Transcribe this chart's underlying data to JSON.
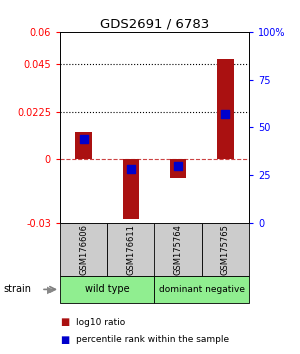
{
  "title": "GDS2691 / 6783",
  "samples": [
    "GSM176606",
    "GSM176611",
    "GSM175764",
    "GSM175765"
  ],
  "log10_ratio": [
    0.013,
    -0.028,
    -0.009,
    0.047
  ],
  "percentile_rank": [
    44,
    28,
    30,
    57
  ],
  "groups": [
    {
      "label": "wild type",
      "indices": [
        0,
        1
      ],
      "color": "#90EE90"
    },
    {
      "label": "dominant negative",
      "indices": [
        2,
        3
      ],
      "color": "#90EE90"
    }
  ],
  "ylim_left": [
    -0.03,
    0.06
  ],
  "ylim_right": [
    0,
    100
  ],
  "yticks_left": [
    -0.03,
    0,
    0.0225,
    0.045,
    0.06
  ],
  "ytick_labels_left": [
    "-0.03",
    "0",
    "0.0225",
    "0.045",
    "0.06"
  ],
  "yticks_right": [
    0,
    25,
    50,
    75,
    100
  ],
  "ytick_labels_right": [
    "0",
    "25",
    "50",
    "75",
    "100%"
  ],
  "hlines": [
    0.0225,
    0.045
  ],
  "bar_color": "#AA1111",
  "dot_color": "#0000CC",
  "bar_width": 0.35,
  "dot_size": 40,
  "background_color": "#ffffff",
  "sample_row_color": "#cccccc",
  "strain_label": "strain",
  "legend_bar": "log10 ratio",
  "legend_dot": "percentile rank within the sample"
}
